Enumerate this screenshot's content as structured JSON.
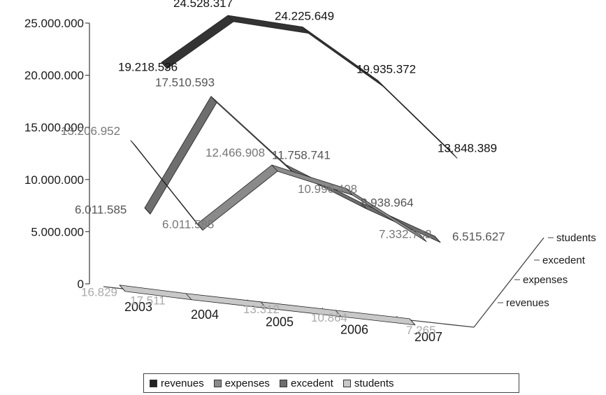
{
  "chart_data": {
    "type": "line",
    "categories": [
      "2003",
      "2004",
      "2005",
      "2006",
      "2007"
    ],
    "series": [
      {
        "name": "revenues",
        "color": "#333333",
        "values": [
          19218536,
          24528317,
          24225649,
          19935372,
          13848389
        ],
        "labels": [
          "19.218.536",
          "24.528.317",
          "24.225.649",
          "19.935.372",
          "13.848.389"
        ],
        "label_color": "#111111"
      },
      {
        "name": "expenses",
        "color": "#8a8a8a",
        "values": [
          13206952,
          6011585,
          12466908,
          10996408,
          7332762
        ],
        "labels": [
          "13.206.952",
          "6.011.585",
          "12.466.908",
          "10.996.408",
          "7.332.762"
        ],
        "label_color": "#777777"
      },
      {
        "name": "excedent",
        "color": "#6e6e6e",
        "values": [
          6011585,
          17510593,
          11758741,
          8938964,
          6515627
        ],
        "labels": [
          "6.011.585",
          "17.510.593",
          "11.758.741",
          "8.938.964",
          "6.515.627"
        ],
        "label_color": "#555555"
      },
      {
        "name": "students",
        "color": "#c8c8c8",
        "values": [
          16829,
          17511,
          13312,
          10864,
          7265
        ],
        "labels": [
          "16.829",
          "17.511",
          "13.312",
          "10.864",
          "7.265"
        ],
        "label_color": "#aaaaaa"
      }
    ],
    "y_ticks": [
      "25.000.000",
      "20.000.000",
      "15.000.000",
      "10.000.000",
      "5.000.000",
      "0"
    ],
    "ylim": [
      0,
      25000000
    ],
    "depth_labels": [
      "students",
      "excedent",
      "expenses",
      "revenues"
    ],
    "legend": [
      "revenues",
      "expenses",
      "excedent",
      "students"
    ],
    "legend_position": "bottom"
  }
}
